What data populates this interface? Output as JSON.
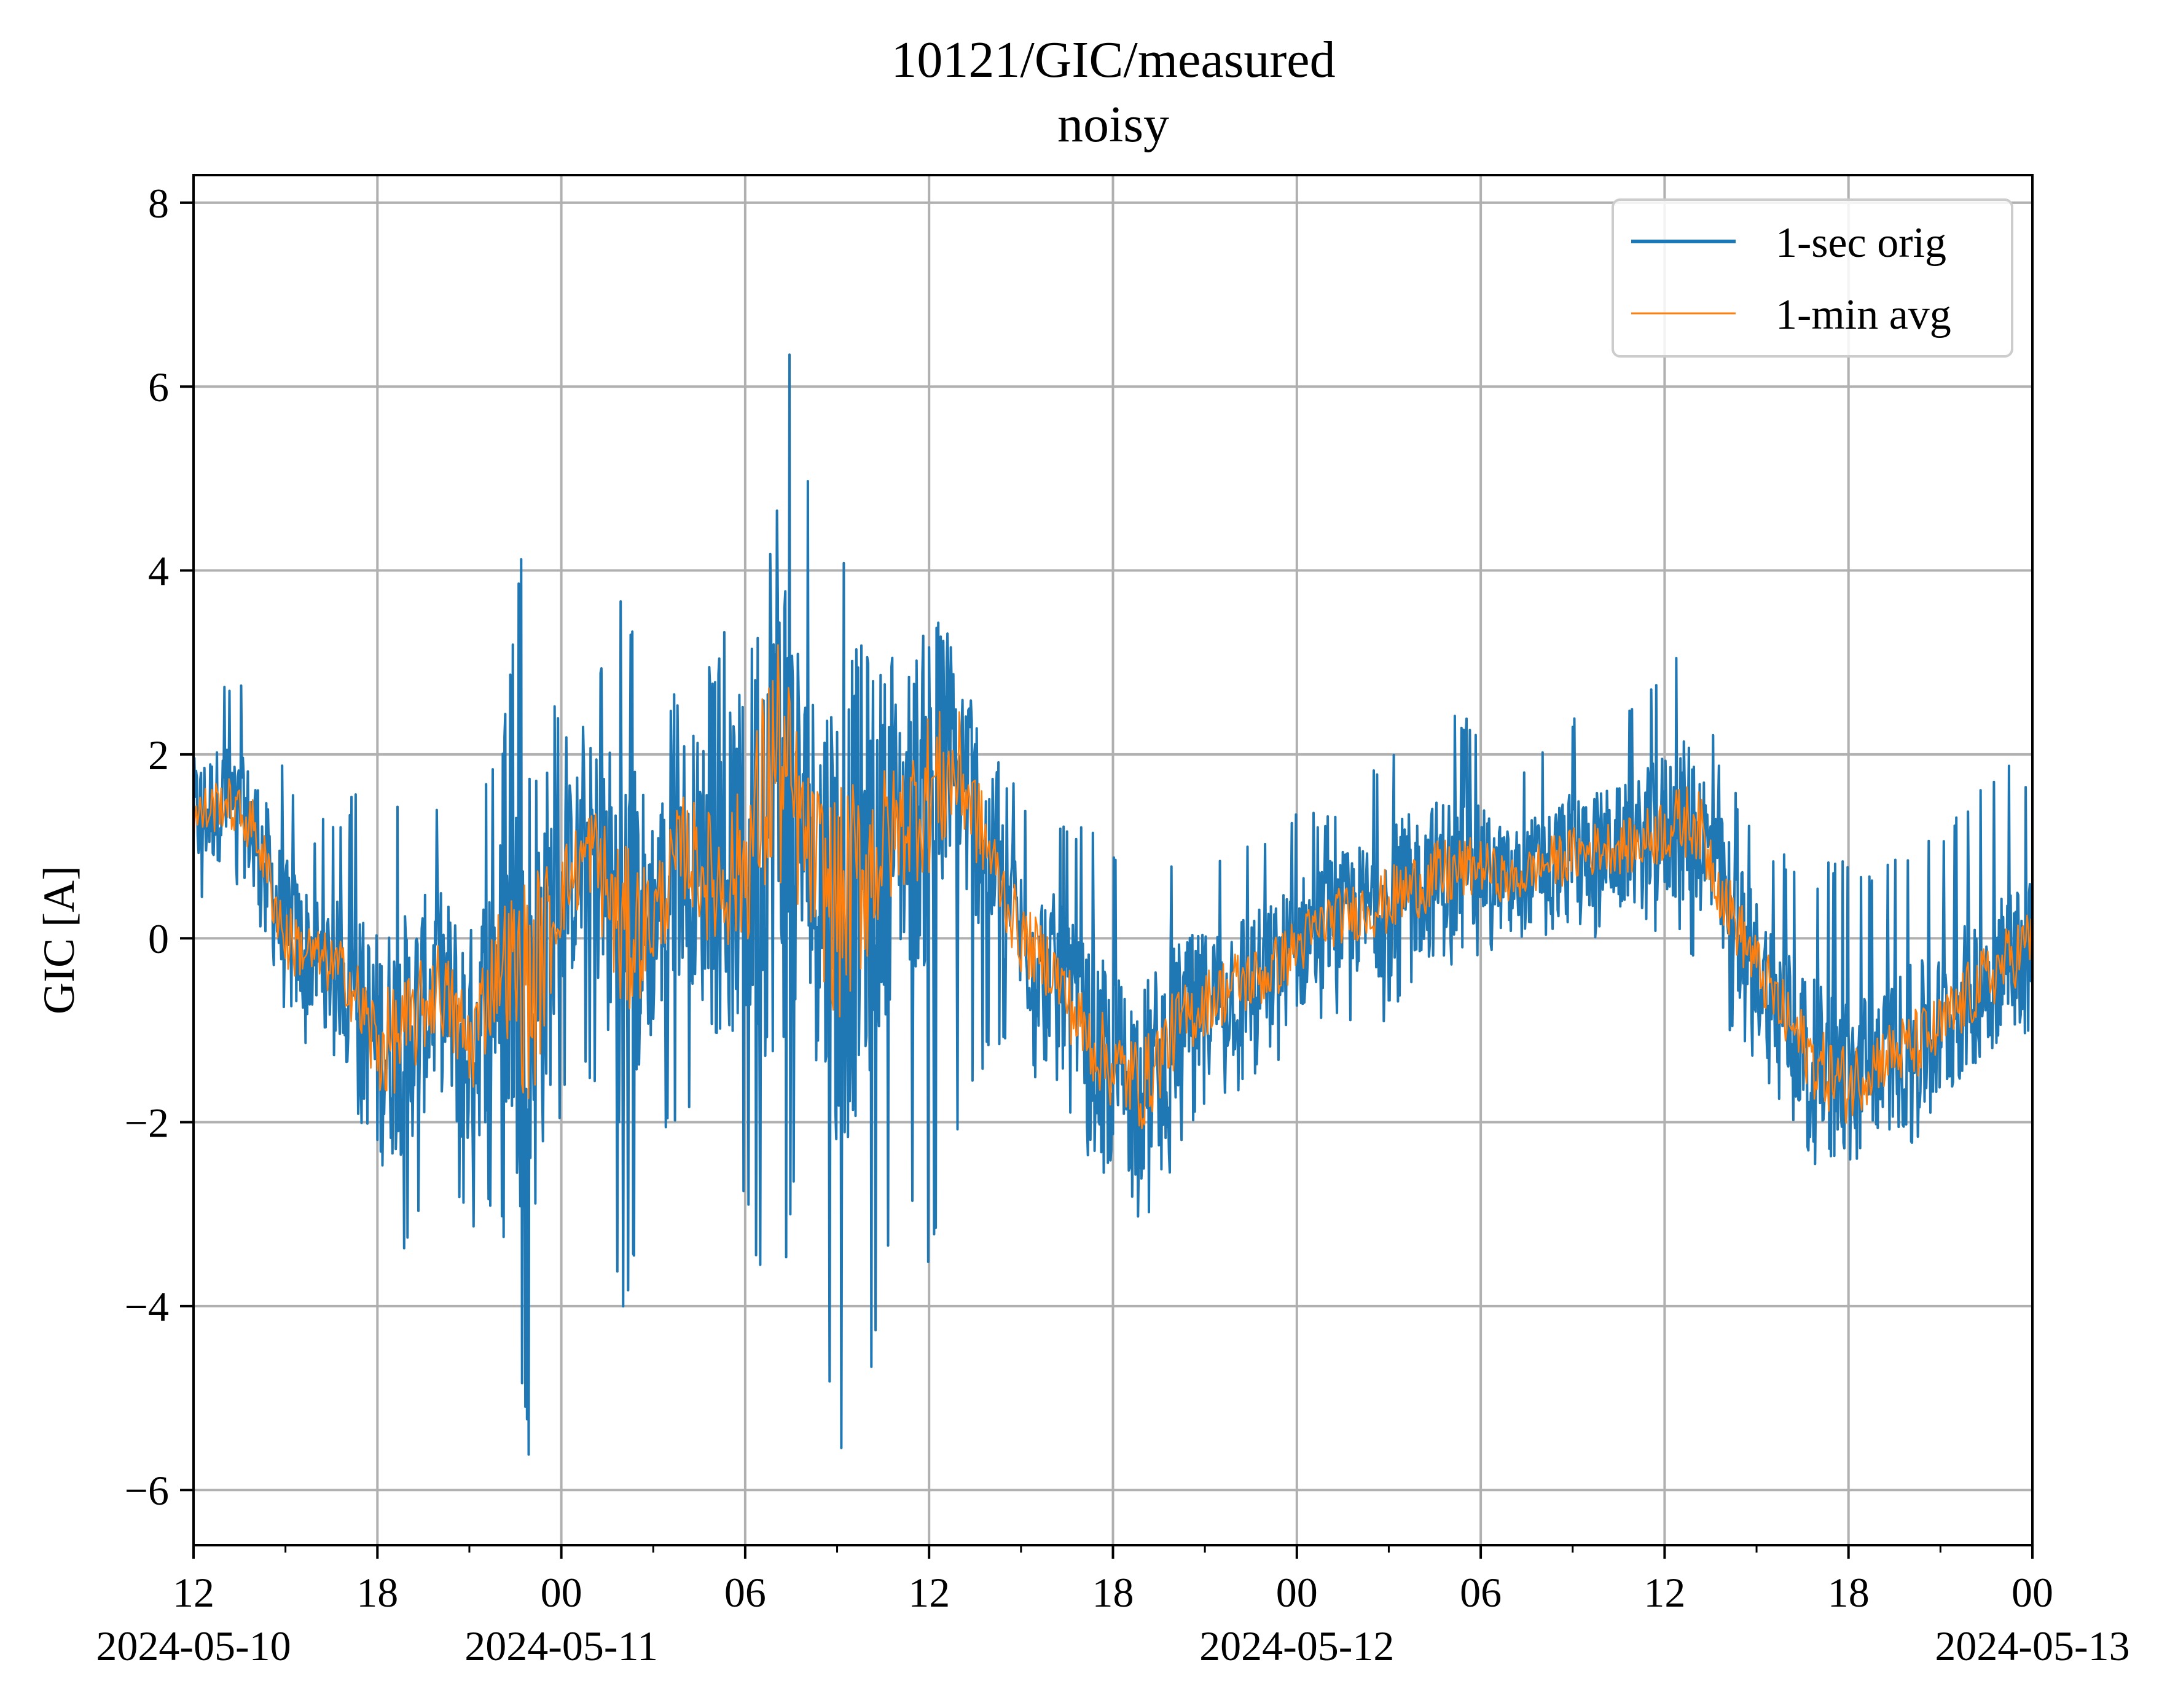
{
  "chart_data": {
    "type": "line",
    "title": "10121/GIC/measured",
    "subtitle": "noisy",
    "xlabel": "",
    "ylabel": "GIC [A]",
    "x_unit": "hours since 2024-05-10 12:00",
    "xlim": [
      0,
      60
    ],
    "ylim": [
      -6.6,
      8.3
    ],
    "grid": true,
    "legend_position": "top-right",
    "x_ticks": [
      {
        "value": 0,
        "label": "12",
        "date": "2024-05-10"
      },
      {
        "value": 6,
        "label": "18",
        "date": ""
      },
      {
        "value": 12,
        "label": "00",
        "date": "2024-05-11"
      },
      {
        "value": 18,
        "label": "06",
        "date": ""
      },
      {
        "value": 24,
        "label": "12",
        "date": ""
      },
      {
        "value": 30,
        "label": "18",
        "date": ""
      },
      {
        "value": 36,
        "label": "00",
        "date": "2024-05-12"
      },
      {
        "value": 42,
        "label": "06",
        "date": ""
      },
      {
        "value": 48,
        "label": "12",
        "date": ""
      },
      {
        "value": 54,
        "label": "18",
        "date": ""
      },
      {
        "value": 60,
        "label": "00",
        "date": "2024-05-13"
      }
    ],
    "x_minor_ticks": [
      3,
      9,
      15,
      21,
      27,
      33,
      39,
      45,
      51,
      57
    ],
    "y_ticks": [
      {
        "value": 8,
        "label": "8"
      },
      {
        "value": 6,
        "label": "6"
      },
      {
        "value": 4,
        "label": "4"
      },
      {
        "value": 2,
        "label": "2"
      },
      {
        "value": 0,
        "label": "0"
      },
      {
        "value": -2,
        "label": "−2"
      },
      {
        "value": -4,
        "label": "−4"
      },
      {
        "value": -6,
        "label": "−6"
      }
    ],
    "series": [
      {
        "name": "1-sec orig",
        "color": "#1f77b4",
        "x": [
          0,
          1,
          2,
          3,
          4,
          5,
          6,
          7,
          8,
          9,
          10,
          11,
          12,
          13,
          14,
          15,
          16,
          17,
          18,
          19,
          20,
          21,
          22,
          23,
          24,
          25,
          26,
          27,
          28,
          29,
          30,
          31,
          32,
          33,
          34,
          35,
          36,
          37,
          38,
          39,
          40,
          41,
          42,
          43,
          44,
          45,
          46,
          47,
          48,
          49,
          50,
          51,
          52,
          53,
          54,
          55,
          56,
          57,
          58,
          59,
          60
        ],
        "y_min": [
          0.2,
          0.6,
          0.4,
          -1.3,
          -1.2,
          -1.4,
          -2.8,
          -3.5,
          -2.5,
          -3.2,
          -3.0,
          -5.8,
          -1.9,
          -1.5,
          -4.2,
          -2.3,
          -1.9,
          -3.1,
          -2.9,
          -4.6,
          -1.5,
          -5.9,
          -5.2,
          -2.4,
          -3.6,
          -2.2,
          -1.2,
          -1.5,
          -1.6,
          -2.4,
          -2.7,
          -3.1,
          -2.5,
          -1.9,
          -1.9,
          -1.4,
          -1.3,
          -1.1,
          -1.0,
          -0.9,
          -0.6,
          -0.5,
          -0.2,
          -0.1,
          0.0,
          0.0,
          0.0,
          0.1,
          0.0,
          -0.3,
          -1.1,
          -1.6,
          -2.0,
          -2.5,
          -2.6,
          -2.1,
          -2.3,
          -1.9,
          -1.4,
          -1.1,
          -1.2
        ],
        "y_max": [
          2.6,
          2.9,
          2.8,
          1.9,
          1.3,
          1.5,
          2.0,
          1.3,
          1.5,
          1.6,
          2.0,
          5.1,
          2.1,
          2.7,
          4.0,
          2.4,
          2.8,
          3.0,
          4.2,
          7.6,
          5.0,
          4.5,
          3.6,
          3.1,
          3.7,
          3.1,
          2.1,
          1.6,
          1.4,
          1.2,
          1.1,
          1.0,
          1.0,
          1.0,
          1.2,
          1.3,
          1.5,
          1.4,
          1.6,
          2.1,
          2.4,
          2.8,
          2.1,
          2.0,
          2.2,
          2.5,
          2.3,
          2.6,
          3.1,
          3.0,
          1.8,
          1.2,
          1.0,
          0.8,
          0.9,
          0.8,
          1.0,
          1.2,
          1.7,
          1.9,
          1.8
        ]
      },
      {
        "name": "1-min avg",
        "color": "#ff7f0e",
        "x": [
          0,
          1,
          2,
          3,
          4,
          5,
          6,
          7,
          8,
          9,
          10,
          11,
          12,
          13,
          14,
          15,
          16,
          17,
          18,
          19,
          20,
          21,
          22,
          23,
          24,
          25,
          26,
          27,
          28,
          29,
          30,
          31,
          32,
          33,
          34,
          35,
          36,
          37,
          38,
          39,
          40,
          41,
          42,
          43,
          44,
          45,
          46,
          47,
          48,
          49,
          50,
          51,
          52,
          53,
          54,
          55,
          56,
          57,
          58,
          59,
          60
        ],
        "y": [
          1.3,
          1.5,
          1.2,
          0.0,
          -0.2,
          -0.4,
          -1.2,
          -1.0,
          -0.5,
          -1.2,
          -0.2,
          -0.6,
          0.5,
          1.0,
          0.0,
          0.2,
          1.0,
          0.6,
          0.8,
          2.0,
          1.0,
          0.3,
          0.8,
          1.2,
          1.6,
          1.8,
          0.9,
          0.0,
          -0.3,
          -1.0,
          -1.4,
          -1.6,
          -1.0,
          -0.7,
          -0.5,
          -0.4,
          -0.1,
          0.2,
          0.3,
          0.4,
          0.6,
          0.7,
          0.8,
          0.6,
          0.8,
          0.9,
          1.0,
          1.0,
          1.2,
          1.3,
          0.4,
          -0.3,
          -0.9,
          -1.4,
          -1.6,
          -1.3,
          -1.2,
          -1.0,
          -0.6,
          -0.3,
          0.0
        ]
      }
    ]
  }
}
